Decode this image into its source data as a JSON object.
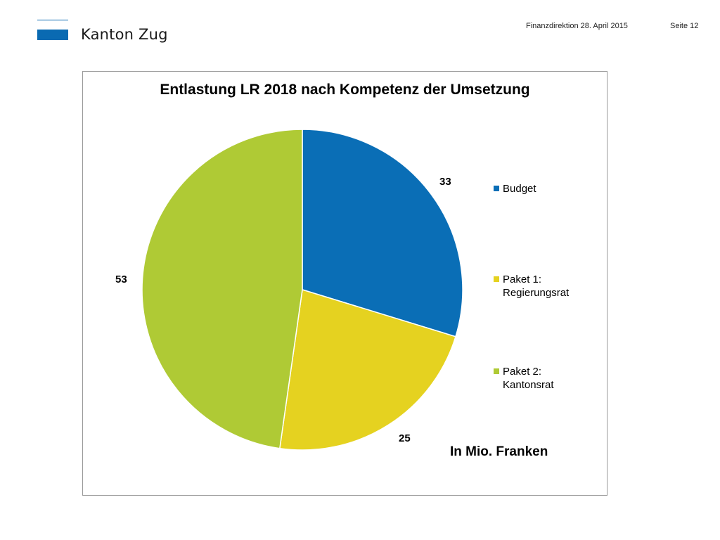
{
  "header": {
    "org_name": "Kanton Zug",
    "department_date": "Finanzdirektion  28. April 2015",
    "page": "Seite 12",
    "brand_color": "#0a6ab2"
  },
  "chart_data": {
    "type": "pie",
    "title": "Entlastung LR 2018 nach Kompetenz der Umsetzung",
    "unit_note": "In Mio. Franken",
    "legend_position": "right",
    "slices": [
      {
        "label": "Budget",
        "value": 33,
        "color": "#0a6eb6"
      },
      {
        "label": "Paket 1:\nRegierungsrat",
        "value": 25,
        "color": "#e5d220"
      },
      {
        "label": "Paket 2:\nKantonsrat",
        "value": 53,
        "color": "#afca35"
      }
    ]
  }
}
